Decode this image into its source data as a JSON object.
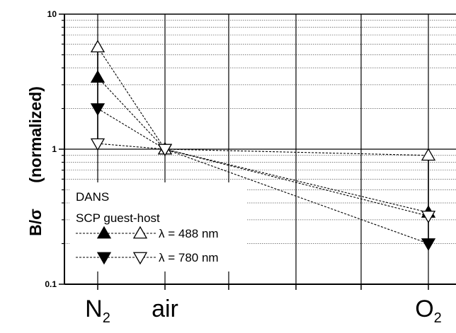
{
  "chart_data": {
    "type": "line",
    "ylabel": "B/σ",
    "ylabel_suffix": "(normalized)",
    "y_scale": "log",
    "ylim": [
      0.1,
      10
    ],
    "y_ticks": [
      {
        "value": 0.1,
        "label": "0.1"
      },
      {
        "value": 1,
        "label": "1"
      },
      {
        "value": 10,
        "label": "10"
      }
    ],
    "x_positions": [
      0,
      1,
      2,
      3,
      4,
      5
    ],
    "x_ticks": [
      {
        "position": 0,
        "main": "N",
        "sub": "2"
      },
      {
        "position": 1,
        "main": "air",
        "sub": ""
      },
      {
        "position": 5,
        "main": "O",
        "sub": "2"
      }
    ],
    "grid": true,
    "legend": {
      "placement": "bottom-left",
      "title_line1": "DANS",
      "title_line2": "SCP  guest-host",
      "rows": [
        {
          "label": "λ = 488 nm"
        },
        {
          "label": "λ = 780 nm"
        }
      ]
    },
    "series": [
      {
        "marker": "triangle-up-filled",
        "x": [
          0,
          1,
          5
        ],
        "y": [
          3.4,
          1.0,
          0.34
        ]
      },
      {
        "marker": "triangle-up-open",
        "x": [
          0,
          1,
          5
        ],
        "y": [
          5.7,
          1.0,
          0.9
        ]
      },
      {
        "marker": "triangle-down-filled",
        "x": [
          0,
          1,
          5
        ],
        "y": [
          2.0,
          1.0,
          0.2
        ]
      },
      {
        "marker": "triangle-down-open",
        "x": [
          0,
          1,
          5
        ],
        "y": [
          1.1,
          1.0,
          0.32
        ]
      }
    ],
    "error_bars": [
      {
        "x": 0,
        "y_low": 1.1,
        "y_high": 5.7
      },
      {
        "x": 5,
        "y_low": 0.2,
        "y_high": 0.9
      }
    ]
  }
}
